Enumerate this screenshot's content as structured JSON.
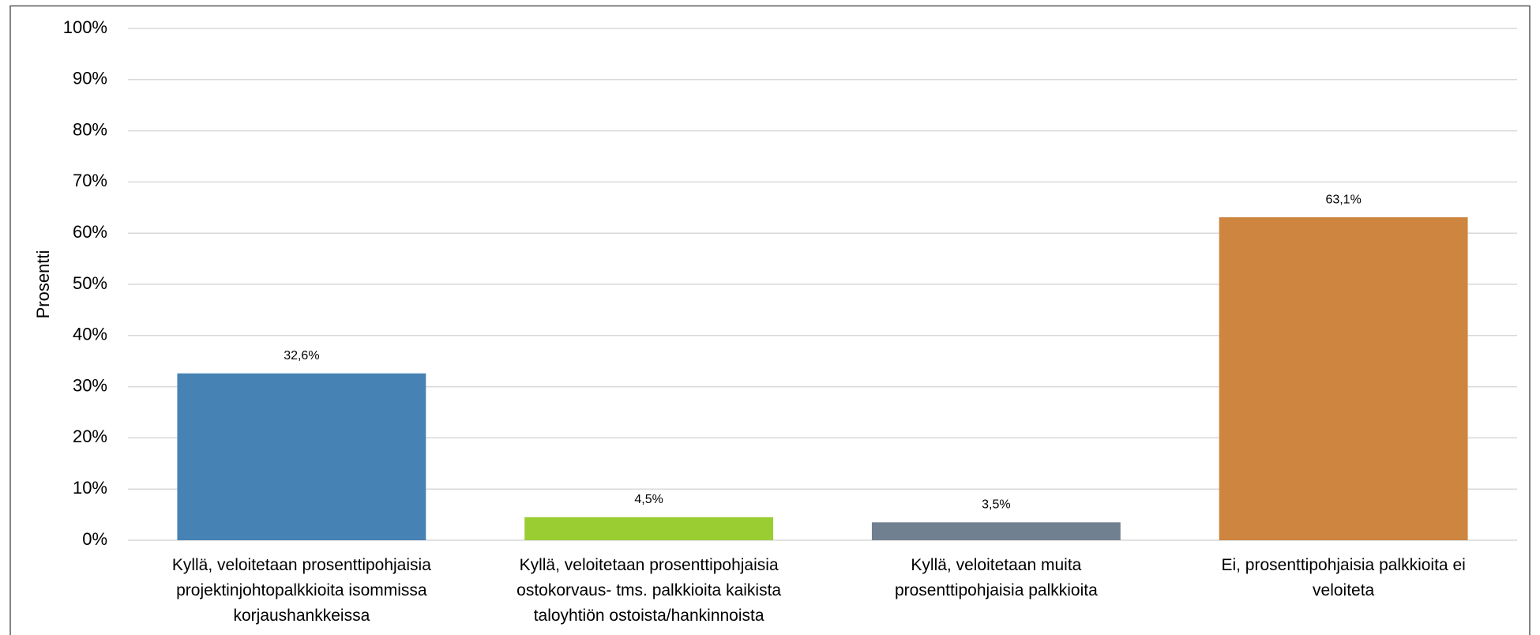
{
  "chart_data": {
    "type": "bar",
    "y_label": "Prosentti",
    "categories": [
      "Kyllä, veloitetaan prosenttipohjaisia\nprojektinjohtopalkkioita isommissa\nkorjaushankkeissa",
      "Kyllä, veloitetaan prosenttipohjaisia\nostokorvaus- tms. palkkioita kaikista\ntaloyhtiön ostoista/hankinnoista",
      "Kyllä, veloitetaan muita\nprosenttipohjaisia palkkioita",
      "Ei, prosenttipohjaisia palkkioita ei\nveloiteta"
    ],
    "values": [
      32.6,
      4.5,
      3.5,
      63.1
    ],
    "value_labels": [
      "32,6%",
      "4,5%",
      "3,5%",
      "63,1%"
    ],
    "colors": [
      "#4682b4",
      "#9acd32",
      "#708090",
      "#cd853f"
    ],
    "ylim": [
      0,
      100
    ],
    "yticks": [
      {
        "value": 0,
        "label": "0%"
      },
      {
        "value": 10,
        "label": "10%"
      },
      {
        "value": 20,
        "label": "20%"
      },
      {
        "value": 30,
        "label": "30%"
      },
      {
        "value": 40,
        "label": "40%"
      },
      {
        "value": 50,
        "label": "50%"
      },
      {
        "value": 60,
        "label": "60%"
      },
      {
        "value": 70,
        "label": "70%"
      },
      {
        "value": 80,
        "label": "80%"
      },
      {
        "value": 90,
        "label": "90%"
      },
      {
        "value": 100,
        "label": "100%"
      }
    ],
    "grid": true
  }
}
